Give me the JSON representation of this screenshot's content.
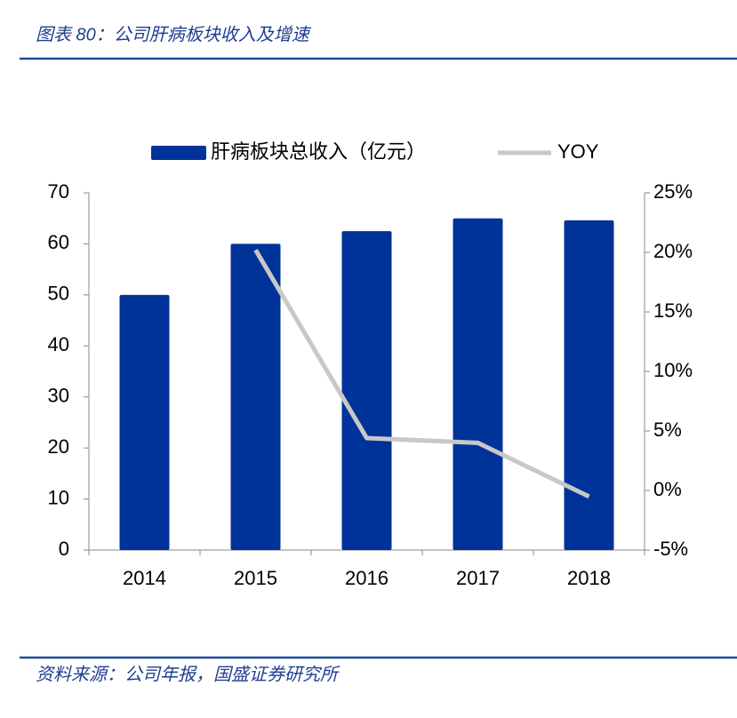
{
  "chart_data": {
    "type": "bar_line",
    "title": "图表 80：公司肝病板块收入及增速",
    "source": "资料来源：公司年报，国盛证券研究所",
    "categories": [
      "2014",
      "2015",
      "2016",
      "2017",
      "2018"
    ],
    "series": [
      {
        "name": "肝病板块总收入（亿元）",
        "type": "bar",
        "color": "#003399",
        "values": [
          50,
          60,
          62.5,
          65,
          64.6
        ]
      },
      {
        "name": "YOY",
        "type": "line",
        "axis": "y2",
        "color": "#c8c8c8",
        "values": [
          null,
          20.2,
          4.4,
          4.0,
          -0.5
        ]
      }
    ],
    "ylim": [
      0,
      70
    ],
    "yticks": [
      0,
      10,
      20,
      30,
      40,
      50,
      60,
      70
    ],
    "y2lim": [
      -5,
      25
    ],
    "y2ticks": [
      {
        "value": -5,
        "label": "-5%"
      },
      {
        "value": 0,
        "label": "0%"
      },
      {
        "value": 5,
        "label": "5%"
      },
      {
        "value": 10,
        "label": "10%"
      },
      {
        "value": 15,
        "label": "15%"
      },
      {
        "value": 20,
        "label": "20%"
      },
      {
        "value": 25,
        "label": "25%"
      }
    ],
    "grid": false
  }
}
